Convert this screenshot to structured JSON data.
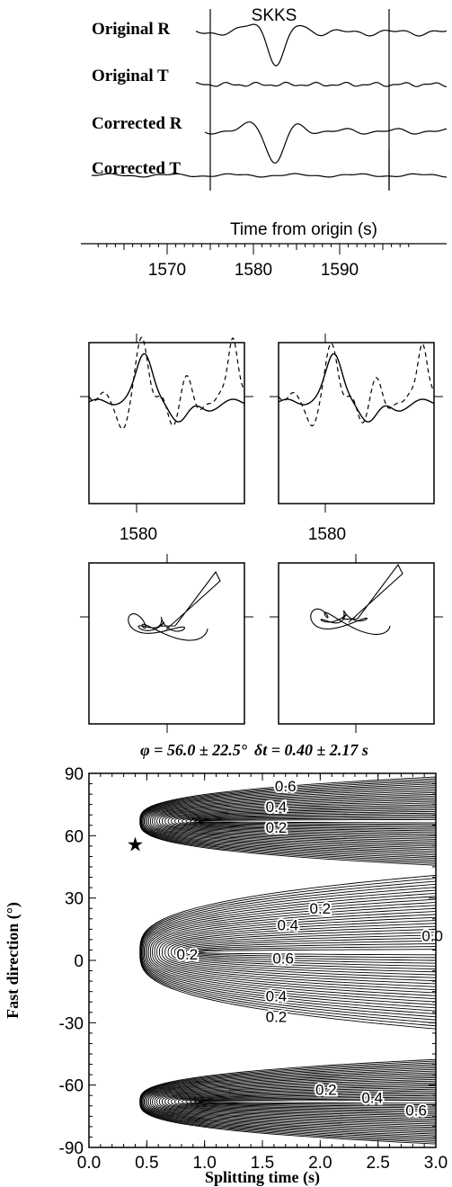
{
  "traces": {
    "phase_label": "SKKS",
    "labels": [
      "Original R",
      "Original T",
      "Corrected R",
      "Corrected T"
    ],
    "time_axis_label": "Time from origin (s)",
    "time_ticks": [
      "1570",
      "1580",
      "1590"
    ]
  },
  "particle_panels": {
    "tick_labels": [
      "1580",
      "1580"
    ]
  },
  "chart_data": {
    "type": "contour",
    "title_phi": "φ = 56.0 ± 22.5°",
    "title_dt": "δt = 0.40 ± 2.17 s",
    "xlabel": "Splitting time (s)",
    "ylabel": "Fast direction (°)",
    "xlim": [
      0.0,
      3.0
    ],
    "ylim": [
      -90,
      90
    ],
    "x_ticks": [
      "0.0",
      "0.5",
      "1.0",
      "1.5",
      "2.0",
      "2.5",
      "3.0"
    ],
    "y_ticks": [
      "90",
      "60",
      "30",
      "0",
      "-30",
      "-60",
      "-90"
    ],
    "best_fit": {
      "dt": 0.4,
      "phi": 56
    },
    "contour_labels": [
      {
        "text": "0.6",
        "x": 1.7,
        "y": 84
      },
      {
        "text": "0.4",
        "x": 1.62,
        "y": 74
      },
      {
        "text": "0.2",
        "x": 1.62,
        "y": 64
      },
      {
        "text": "0.2",
        "x": 0.85,
        "y": 3
      },
      {
        "text": "0.2",
        "x": 2.0,
        "y": 25
      },
      {
        "text": "0.4",
        "x": 1.72,
        "y": 17
      },
      {
        "text": "0.6",
        "x": 1.68,
        "y": 1
      },
      {
        "text": "0.0",
        "x": 2.97,
        "y": 12
      },
      {
        "text": "0.4",
        "x": 1.62,
        "y": -17
      },
      {
        "text": "0.2",
        "x": 1.62,
        "y": -27
      },
      {
        "text": "0.2",
        "x": 2.05,
        "y": -62
      },
      {
        "text": "0.4",
        "x": 2.45,
        "y": -66
      },
      {
        "text": "0.6",
        "x": 2.83,
        "y": -72
      }
    ],
    "grid": false,
    "contour_bands": [
      {
        "phi_min": 44,
        "phi_max": 90
      },
      {
        "phi_min": -36,
        "phi_max": 44
      },
      {
        "phi_min": -90,
        "phi_max": -46
      }
    ]
  }
}
